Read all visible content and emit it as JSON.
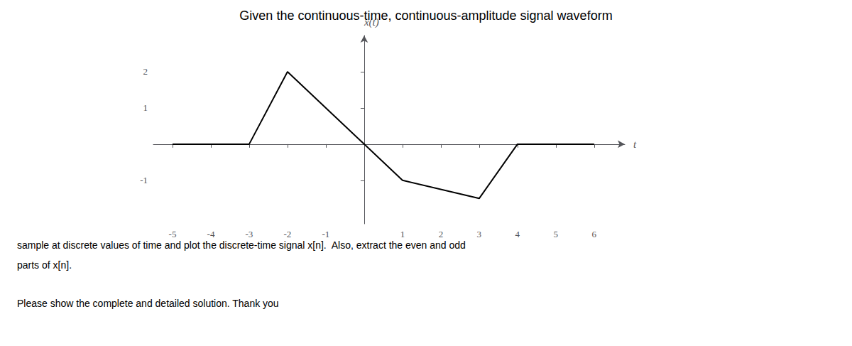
{
  "chart_data": {
    "type": "line",
    "title": "Given the continuous-time, continuous-amplitude signal waveform",
    "x_label": "t",
    "y_label": "x(t)",
    "x": [
      -5,
      -3,
      -2,
      1,
      3,
      4,
      6
    ],
    "values": [
      0,
      0,
      2,
      -1,
      -1.5,
      0,
      0
    ],
    "color": "#000000",
    "xlim": [
      -5.5,
      6.8
    ],
    "xticks": [
      -5,
      -4,
      -3,
      -2,
      -1,
      1,
      2,
      3,
      4,
      5,
      6
    ],
    "ylim": [
      -2.2,
      3.0
    ],
    "yticks": [
      -1,
      1,
      2
    ],
    "grid": false,
    "annotations": [
      "sample at discrete values of time and plot the discrete-time signal x[n].  Also, extract the even and odd",
      "parts of x[n].",
      "Please show the complete and detailed solution. Thank you"
    ]
  }
}
